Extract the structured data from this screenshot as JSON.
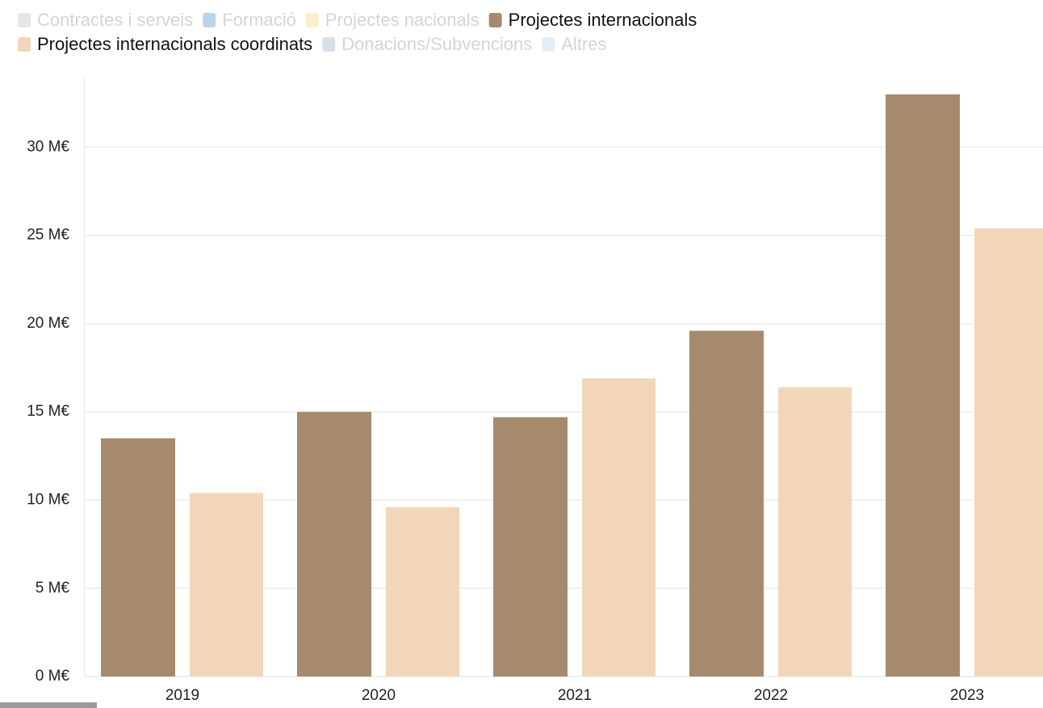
{
  "chart_data": {
    "type": "bar",
    "categories": [
      "2019",
      "2020",
      "2021",
      "2022",
      "2023"
    ],
    "series": [
      {
        "name": "Contractes i serveis",
        "color": "#e6e6e6",
        "hidden": true,
        "values": [
          null,
          null,
          null,
          null,
          null
        ]
      },
      {
        "name": "Formació",
        "color": "#b9d5ec",
        "hidden": true,
        "values": [
          null,
          null,
          null,
          null,
          null
        ]
      },
      {
        "name": "Projectes nacionals",
        "color": "#fbefc9",
        "hidden": true,
        "values": [
          null,
          null,
          null,
          null,
          null
        ]
      },
      {
        "name": "Projectes internacionals",
        "color": "#a68a6e",
        "values": [
          13.5,
          15.0,
          14.7,
          19.6,
          33.0
        ]
      },
      {
        "name": "Projectes internacionals coordinats",
        "color": "#f2d6b8",
        "values": [
          10.4,
          9.6,
          16.9,
          16.4,
          25.4
        ]
      },
      {
        "name": "Donacions/Subvencions",
        "color": "#d9dfe8",
        "hidden": true,
        "values": [
          null,
          null,
          null,
          null,
          null
        ]
      },
      {
        "name": "Altres",
        "color": "#e5eef5",
        "hidden": true,
        "values": [
          null,
          null,
          null,
          null,
          null
        ]
      }
    ],
    "ylim": [
      0,
      34
    ],
    "yticks": [
      {
        "value": 0,
        "label": "0 M€"
      },
      {
        "value": 5,
        "label": "5 M€"
      },
      {
        "value": 10,
        "label": "10 M€"
      },
      {
        "value": 15,
        "label": "15 M€"
      },
      {
        "value": 20,
        "label": "20 M€"
      },
      {
        "value": 25,
        "label": "25 M€"
      },
      {
        "value": 30,
        "label": "30 M€"
      }
    ],
    "grid": true
  }
}
